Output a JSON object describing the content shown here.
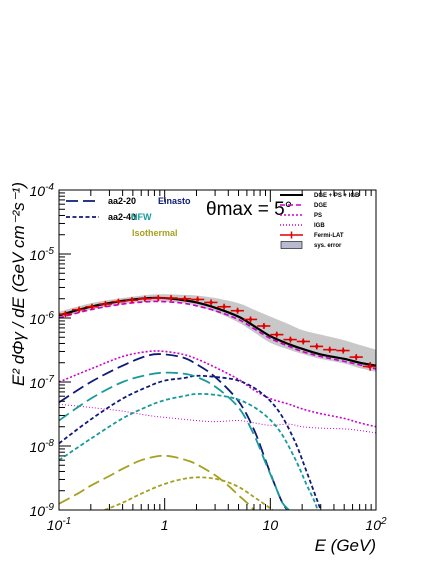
{
  "chart_data": {
    "type": "line",
    "x_scale": "log",
    "y_scale": "log",
    "xlim": [
      0.1,
      100
    ],
    "ylim": [
      1e-09,
      0.0001
    ],
    "grid": false,
    "annotation": "θmax = 5°",
    "xlabel": "E (GeV)",
    "ylabel": "E² dΦγ / dE (GeV cm⁻²s⁻¹)",
    "x_ticks": [
      {
        "value": 0.1,
        "base": "10",
        "exp": "-1"
      },
      {
        "value": 1,
        "base": "1",
        "exp": ""
      },
      {
        "value": 10,
        "base": "10",
        "exp": ""
      },
      {
        "value": 100,
        "base": "10",
        "exp": "2"
      }
    ],
    "y_ticks": [
      {
        "value": 1e-09,
        "base": "10",
        "exp": "-9"
      },
      {
        "value": 1e-08,
        "base": "10",
        "exp": "-8"
      },
      {
        "value": 1e-07,
        "base": "10",
        "exp": "-7"
      },
      {
        "value": 1e-06,
        "base": "10",
        "exp": "-6"
      },
      {
        "value": 1e-05,
        "base": "10",
        "exp": "-5"
      },
      {
        "value": 0.0001,
        "base": "10",
        "exp": "-4"
      }
    ],
    "legend_left": {
      "styles": [
        {
          "label": "aa2-20",
          "dash": "long"
        },
        {
          "label": "aa2-40",
          "dash": "short"
        }
      ],
      "profiles": [
        {
          "label": "Einasto",
          "color": "#0d1a7a"
        },
        {
          "label": "NFW",
          "color": "#1a9a9a"
        },
        {
          "label": "Isothermal",
          "color": "#a6a020"
        }
      ]
    },
    "legend_right": [
      {
        "label": "DGE + PS + IGB",
        "kind": "line",
        "color": "#000000",
        "dash": "solid"
      },
      {
        "label": "DGE",
        "kind": "line",
        "color": "#cc00cc",
        "dash": "dashed"
      },
      {
        "label": "PS",
        "kind": "line",
        "color": "#cc00cc",
        "dash": "dotted"
      },
      {
        "label": "IGB",
        "kind": "line",
        "color": "#cc00cc",
        "dash": "finedot"
      },
      {
        "label": "Fermi-LAT",
        "kind": "errbar",
        "color": "#e00000"
      },
      {
        "label": "sys. error",
        "kind": "box",
        "color": "#b8bbd0"
      }
    ],
    "series": [
      {
        "name": "DGE + PS + IGB",
        "color": "#000000",
        "dash": "solid",
        "width": 2.2,
        "points": [
          [
            0.1,
            1.1e-06
          ],
          [
            0.2,
            1.5e-06
          ],
          [
            0.4,
            1.85e-06
          ],
          [
            0.7,
            2.05e-06
          ],
          [
            1,
            2.05e-06
          ],
          [
            1.5,
            1.9e-06
          ],
          [
            2,
            1.75e-06
          ],
          [
            3,
            1.45e-06
          ],
          [
            5,
            1.05e-06
          ],
          [
            7,
            7.5e-07
          ],
          [
            10,
            5.2e-07
          ],
          [
            15,
            3.9e-07
          ],
          [
            20,
            3.3e-07
          ],
          [
            30,
            2.7e-07
          ],
          [
            50,
            2.3e-07
          ],
          [
            70,
            2e-07
          ],
          [
            100,
            1.8e-07
          ]
        ]
      },
      {
        "name": "DGE",
        "color": "#cc00cc",
        "dash": "dashed",
        "width": 1.6,
        "points": [
          [
            0.1,
            1e-06
          ],
          [
            0.2,
            1.35e-06
          ],
          [
            0.4,
            1.65e-06
          ],
          [
            0.7,
            1.8e-06
          ],
          [
            1,
            1.8e-06
          ],
          [
            1.5,
            1.7e-06
          ],
          [
            2,
            1.55e-06
          ],
          [
            3,
            1.3e-06
          ],
          [
            5,
            9.5e-07
          ],
          [
            7,
            6.8e-07
          ],
          [
            10,
            4.8e-07
          ],
          [
            15,
            3.6e-07
          ],
          [
            20,
            3e-07
          ],
          [
            30,
            2.5e-07
          ],
          [
            50,
            2.1e-07
          ],
          [
            70,
            1.85e-07
          ],
          [
            100,
            1.6e-07
          ]
        ]
      },
      {
        "name": "PS",
        "color": "#cc00cc",
        "dash": "dotted",
        "width": 1.6,
        "points": [
          [
            0.1,
            1e-07
          ],
          [
            0.2,
            1.6e-07
          ],
          [
            0.4,
            2.5e-07
          ],
          [
            0.7,
            3e-07
          ],
          [
            1,
            3e-07
          ],
          [
            1.5,
            2.7e-07
          ],
          [
            2,
            2.3e-07
          ],
          [
            3,
            1.7e-07
          ],
          [
            5,
            1.1e-07
          ],
          [
            7,
            7.5e-08
          ],
          [
            10,
            5.5e-08
          ],
          [
            15,
            4.5e-08
          ],
          [
            20,
            3.8e-08
          ],
          [
            30,
            3.2e-08
          ],
          [
            50,
            2.7e-08
          ],
          [
            70,
            2.3e-08
          ],
          [
            100,
            2e-08
          ]
        ]
      },
      {
        "name": "IGB",
        "color": "#cc00cc",
        "dash": "finedot",
        "width": 1.0,
        "points": [
          [
            0.1,
            4.5e-08
          ],
          [
            0.2,
            4e-08
          ],
          [
            0.4,
            3.5e-08
          ],
          [
            0.7,
            3e-08
          ],
          [
            1,
            2.8e-08
          ],
          [
            2,
            2.5e-08
          ],
          [
            3,
            2.4e-08
          ],
          [
            5,
            2.5e-08
          ],
          [
            7,
            2.3e-08
          ],
          [
            10,
            2.1e-08
          ],
          [
            15,
            2.2e-08
          ],
          [
            20,
            2e-08
          ],
          [
            30,
            1.9e-08
          ],
          [
            50,
            1.85e-08
          ],
          [
            70,
            1.75e-08
          ],
          [
            100,
            1.6e-08
          ]
        ]
      },
      {
        "name": "aa2-20 Einasto",
        "color": "#0d1a7a",
        "dash": "long",
        "width": 1.8,
        "points": [
          [
            0.1,
            4.8e-08
          ],
          [
            0.2,
            1e-07
          ],
          [
            0.4,
            1.8e-07
          ],
          [
            0.7,
            2.6e-07
          ],
          [
            1,
            2.7e-07
          ],
          [
            1.5,
            2.4e-07
          ],
          [
            2,
            1.9e-07
          ],
          [
            3,
            1.2e-07
          ],
          [
            5,
            5e-08
          ],
          [
            7,
            1.8e-08
          ],
          [
            9,
            6e-09
          ],
          [
            11,
            2.5e-09
          ],
          [
            13,
            1.3e-09
          ],
          [
            14.5,
            1e-09
          ]
        ]
      },
      {
        "name": "aa2-40 Einasto",
        "color": "#0d1a7a",
        "dash": "short",
        "width": 1.8,
        "points": [
          [
            0.1,
            1.1e-08
          ],
          [
            0.2,
            2.6e-08
          ],
          [
            0.4,
            5.5e-08
          ],
          [
            0.7,
            8.5e-08
          ],
          [
            1,
            1.05e-07
          ],
          [
            1.5,
            1.15e-07
          ],
          [
            2,
            1.25e-07
          ],
          [
            3,
            1.2e-07
          ],
          [
            5,
            1.05e-07
          ],
          [
            8,
            7e-08
          ],
          [
            12,
            3.5e-08
          ],
          [
            17,
            1.2e-08
          ],
          [
            22,
            4e-09
          ],
          [
            27,
            1.6e-09
          ],
          [
            30,
            1e-09
          ]
        ]
      },
      {
        "name": "aa2-20 NFW",
        "color": "#1a9a9a",
        "dash": "long",
        "width": 1.8,
        "points": [
          [
            0.1,
            2.5e-08
          ],
          [
            0.2,
            5.5e-08
          ],
          [
            0.4,
            1e-07
          ],
          [
            0.7,
            1.3e-07
          ],
          [
            1,
            1.4e-07
          ],
          [
            1.5,
            1.35e-07
          ],
          [
            2,
            1.2e-07
          ],
          [
            3,
            8.5e-08
          ],
          [
            5,
            4e-08
          ],
          [
            7,
            1.5e-08
          ],
          [
            9,
            5.5e-09
          ],
          [
            11,
            2.5e-09
          ],
          [
            13,
            1.3e-09
          ],
          [
            15,
            1e-09
          ]
        ]
      },
      {
        "name": "aa2-40 NFW",
        "color": "#1a9a9a",
        "dash": "short",
        "width": 1.8,
        "points": [
          [
            0.1,
            6e-09
          ],
          [
            0.2,
            1.3e-08
          ],
          [
            0.4,
            2.7e-08
          ],
          [
            0.7,
            4.2e-08
          ],
          [
            1,
            5.2e-08
          ],
          [
            1.5,
            6e-08
          ],
          [
            2,
            6.5e-08
          ],
          [
            3,
            6.3e-08
          ],
          [
            5,
            5.3e-08
          ],
          [
            8,
            3.5e-08
          ],
          [
            12,
            1.8e-08
          ],
          [
            17,
            6.5e-09
          ],
          [
            22,
            2.5e-09
          ],
          [
            26,
            1.4e-09
          ],
          [
            28,
            1e-09
          ]
        ]
      },
      {
        "name": "aa2-20 Isothermal",
        "color": "#a6a020",
        "dash": "long",
        "width": 1.8,
        "points": [
          [
            0.1,
            1.25e-09
          ],
          [
            0.15,
            1.8e-09
          ],
          [
            0.2,
            2.4e-09
          ],
          [
            0.3,
            3.4e-09
          ],
          [
            0.4,
            4.4e-09
          ],
          [
            0.6,
            6e-09
          ],
          [
            0.9,
            7e-09
          ],
          [
            1.2,
            6.8e-09
          ],
          [
            1.6,
            6e-09
          ],
          [
            2,
            5.2e-09
          ],
          [
            3,
            3.5e-09
          ],
          [
            4,
            2.4e-09
          ],
          [
            5,
            1.7e-09
          ],
          [
            6,
            1.3e-09
          ],
          [
            7,
            1e-09
          ]
        ]
      },
      {
        "name": "aa2-40 Isothermal",
        "color": "#a6a020",
        "dash": "short",
        "width": 1.8,
        "points": [
          [
            0.27,
            1e-09
          ],
          [
            0.4,
            1.3e-09
          ],
          [
            0.6,
            1.8e-09
          ],
          [
            0.9,
            2.4e-09
          ],
          [
            1.3,
            2.9e-09
          ],
          [
            1.8,
            3.2e-09
          ],
          [
            2.5,
            3.2e-09
          ],
          [
            3.5,
            2.9e-09
          ],
          [
            5,
            2.3e-09
          ],
          [
            7,
            1.6e-09
          ],
          [
            9,
            1.2e-09
          ],
          [
            10.5,
            1e-09
          ]
        ]
      }
    ],
    "fermi_lat": [
      {
        "x": 0.115,
        "y": 1.15e-06,
        "xlo": 0.1,
        "xhi": 0.133
      },
      {
        "x": 0.155,
        "y": 1.35e-06,
        "xlo": 0.133,
        "xhi": 0.178
      },
      {
        "x": 0.205,
        "y": 1.5e-06,
        "xlo": 0.178,
        "xhi": 0.237
      },
      {
        "x": 0.275,
        "y": 1.65e-06,
        "xlo": 0.237,
        "xhi": 0.316
      },
      {
        "x": 0.365,
        "y": 1.8e-06,
        "xlo": 0.316,
        "xhi": 0.422
      },
      {
        "x": 0.49,
        "y": 1.9e-06,
        "xlo": 0.422,
        "xhi": 0.562
      },
      {
        "x": 0.65,
        "y": 2e-06,
        "xlo": 0.562,
        "xhi": 0.75
      },
      {
        "x": 0.87,
        "y": 2.05e-06,
        "xlo": 0.75,
        "xhi": 1.0
      },
      {
        "x": 1.15,
        "y": 2.05e-06,
        "xlo": 1.0,
        "xhi": 1.33
      },
      {
        "x": 1.55,
        "y": 2e-06,
        "xlo": 1.33,
        "xhi": 1.78
      },
      {
        "x": 2.05,
        "y": 1.95e-06,
        "xlo": 1.78,
        "xhi": 2.37
      },
      {
        "x": 2.75,
        "y": 1.75e-06,
        "xlo": 2.37,
        "xhi": 3.16
      },
      {
        "x": 3.65,
        "y": 1.5e-06,
        "xlo": 3.16,
        "xhi": 4.22
      },
      {
        "x": 4.9,
        "y": 1.3e-06,
        "xlo": 4.22,
        "xhi": 5.62
      },
      {
        "x": 6.5,
        "y": 9.5e-07,
        "xlo": 5.62,
        "xhi": 7.5
      },
      {
        "x": 8.7,
        "y": 7.5e-07,
        "xlo": 7.5,
        "xhi": 10.0
      },
      {
        "x": 11.5,
        "y": 5.5e-07,
        "xlo": 10.0,
        "xhi": 13.3
      },
      {
        "x": 15.5,
        "y": 4.6e-07,
        "xlo": 13.3,
        "xhi": 17.8
      },
      {
        "x": 20.5,
        "y": 4.3e-07,
        "xlo": 17.8,
        "xhi": 23.7
      },
      {
        "x": 27.5,
        "y": 3.6e-07,
        "xlo": 23.7,
        "xhi": 31.6
      },
      {
        "x": 36.5,
        "y": 3.2e-07,
        "xlo": 31.6,
        "xhi": 42.2
      },
      {
        "x": 49,
        "y": 3.1e-07,
        "xlo": 42.2,
        "xhi": 56.2
      },
      {
        "x": 65,
        "y": 2.45e-07,
        "xlo": 56.2,
        "xhi": 75.0
      },
      {
        "x": 88,
        "y": 1.75e-07,
        "xlo": 75.0,
        "xhi": 100.0,
        "ylo": 1.5e-07,
        "yhi": 2.05e-07
      }
    ],
    "sys_error_band": [
      [
        0.1,
        1e-06,
        1.25e-06
      ],
      [
        0.2,
        1.35e-06,
        1.7e-06
      ],
      [
        0.4,
        1.65e-06,
        2.05e-06
      ],
      [
        0.7,
        1.8e-06,
        2.3e-06
      ],
      [
        1,
        1.8e-06,
        2.35e-06
      ],
      [
        1.5,
        1.7e-06,
        2.3e-06
      ],
      [
        2,
        1.55e-06,
        2.25e-06
      ],
      [
        3,
        1.25e-06,
        2.05e-06
      ],
      [
        5,
        8.5e-07,
        1.7e-06
      ],
      [
        7,
        6e-07,
        1.35e-06
      ],
      [
        10,
        4.1e-07,
        1.05e-06
      ],
      [
        15,
        3.2e-07,
        8e-07
      ],
      [
        20,
        2.75e-07,
        6.5e-07
      ],
      [
        30,
        2.3e-07,
        5.5e-07
      ],
      [
        50,
        1.95e-07,
        4.5e-07
      ],
      [
        70,
        1.65e-07,
        3.8e-07
      ],
      [
        100,
        1.45e-07,
        3.2e-07
      ]
    ]
  }
}
